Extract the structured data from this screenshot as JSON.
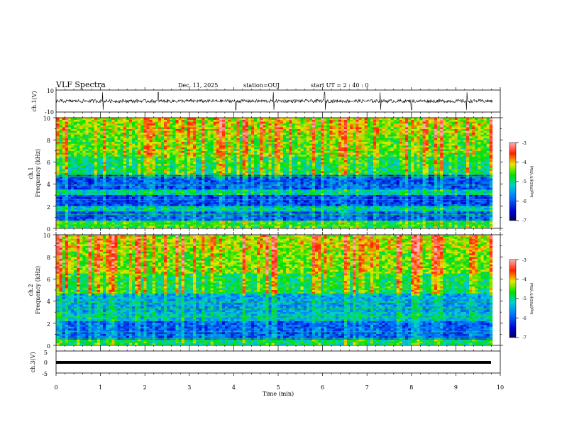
{
  "header": {
    "title": "VLF Spectra",
    "date": "Dec. 11, 2025",
    "station": "station=OUJ",
    "start": "start  UT =   2 : 40 : 0"
  },
  "chart_data": [
    {
      "type": "line",
      "id": "ch1-waveform",
      "ylabel": "ch.1(V)",
      "ylim": [
        -10,
        10
      ],
      "y_ticks": [
        "10",
        "-10"
      ],
      "xlim": [
        0,
        10
      ],
      "trace_color": "#000000",
      "trace_description_values": {
        "baseline_v": 0,
        "typical_amplitude_v": 2.5,
        "spike_times_min": [
          1.05,
          2.3,
          4.05,
          4.9,
          6.05,
          7.3,
          8.0,
          9.25
        ]
      }
    },
    {
      "type": "heatmap",
      "id": "ch1-spectrogram",
      "ylabel_line1": "ch.1",
      "ylabel_line2": "Frequency (kHz)",
      "ylim": [
        0,
        10
      ],
      "y_ticks": [
        "0",
        "2",
        "4",
        "6",
        "8",
        "10"
      ],
      "xlim": [
        0,
        9.83
      ],
      "colorbar": {
        "label": "log(PSD)(V²/Hz)",
        "range": [
          -7,
          -3
        ],
        "ticks": [
          "-3",
          "-4",
          "-5",
          "-6",
          "-7"
        ]
      },
      "bands_khz": [
        {
          "from": 0,
          "to": 0.6,
          "level": -4.8
        },
        {
          "from": 0.6,
          "to": 1.5,
          "level": -6.0
        },
        {
          "from": 1.5,
          "to": 2.0,
          "level": -5.3
        },
        {
          "from": 2.0,
          "to": 3.0,
          "level": -6.2
        },
        {
          "from": 3.0,
          "to": 3.5,
          "level": -5.2
        },
        {
          "from": 3.5,
          "to": 4.8,
          "level": -6.1
        },
        {
          "from": 4.8,
          "to": 6.5,
          "level": -5.0
        },
        {
          "from": 6.5,
          "to": 8.5,
          "level": -4.6
        },
        {
          "from": 8.5,
          "to": 10,
          "level": -4.4
        }
      ]
    },
    {
      "type": "heatmap",
      "id": "ch2-spectrogram",
      "ylabel_line1": "ch.2",
      "ylabel_line2": "Frequency (kHz)",
      "ylim": [
        0,
        10
      ],
      "y_ticks": [
        "0",
        "2",
        "4",
        "6",
        "8",
        "10"
      ],
      "xlim": [
        0,
        9.83
      ],
      "colorbar": {
        "label": "log(PSD)(V²/Hz)",
        "range": [
          -7,
          -3
        ],
        "ticks": [
          "-3",
          "-4",
          "-5",
          "-6",
          "-7"
        ]
      },
      "bands_khz": [
        {
          "from": 0,
          "to": 0.5,
          "level": -5.0
        },
        {
          "from": 0.5,
          "to": 2.2,
          "level": -6.0
        },
        {
          "from": 2.2,
          "to": 3.0,
          "level": -5.4
        },
        {
          "from": 3.0,
          "to": 4.6,
          "level": -5.6
        },
        {
          "from": 4.6,
          "to": 6.5,
          "level": -4.9
        },
        {
          "from": 6.5,
          "to": 8.5,
          "level": -4.5
        },
        {
          "from": 8.5,
          "to": 10,
          "level": -4.3
        }
      ]
    },
    {
      "type": "line",
      "id": "ch3-waveform",
      "ylabel": "ch.3(V)",
      "ylim": [
        -5,
        5
      ],
      "y_ticks": [
        "5",
        "0",
        "-5"
      ],
      "xlim": [
        0,
        10
      ],
      "xlabel": "Time  (min)",
      "x_ticks": [
        "0",
        "1",
        "2",
        "3",
        "4",
        "5",
        "6",
        "7",
        "8",
        "9",
        "10"
      ],
      "trace_color": "#000000",
      "trace_values": {
        "constant_v": 0
      }
    }
  ]
}
